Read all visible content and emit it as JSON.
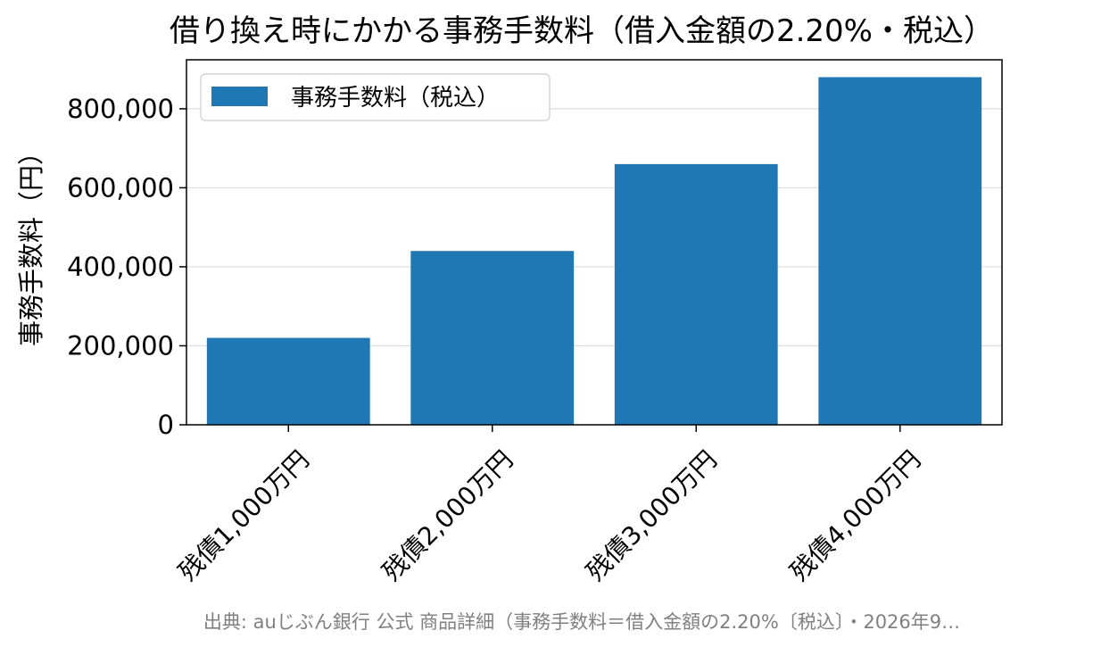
{
  "chart_data": {
    "type": "bar",
    "title": "借り換え時にかかる事務手数料（借入金額の2.20%・税込）",
    "ylabel": "事務手数料（円）",
    "xlabel": "",
    "categories": [
      "残債1,000万円",
      "残債2,000万円",
      "残債3,000万円",
      "残債4,000万円"
    ],
    "series": [
      {
        "name": "事務手数料（税込）",
        "values": [
          220000,
          440000,
          660000,
          880000
        ],
        "color": "#1f77b4"
      }
    ],
    "ylim": [
      0,
      924000
    ],
    "yticks": [
      0,
      200000,
      400000,
      600000,
      800000
    ],
    "ytick_labels": [
      "0",
      "200,000",
      "400,000",
      "600,000",
      "800,000"
    ],
    "grid": "y",
    "legend_position": "top-left",
    "source": "出典: auじぶん銀行 公式 商品詳細（事務手数料＝借入金額の2.20%〔税込〕・2026年9…"
  }
}
